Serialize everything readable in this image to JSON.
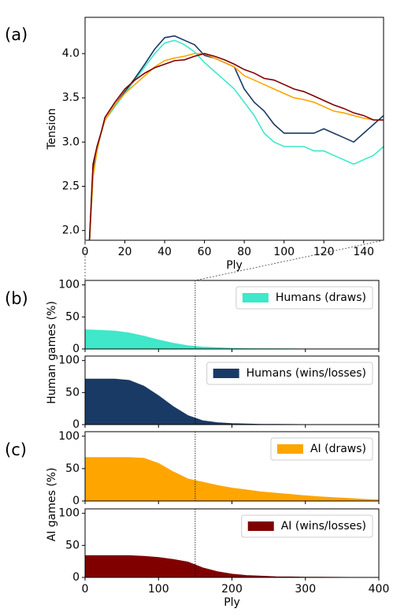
{
  "chart_data": [
    {
      "type": "line",
      "panel_label": "(a)",
      "xlabel": "Ply",
      "ylabel": "Tension",
      "xlim": [
        0,
        150
      ],
      "ylim": [
        1.89,
        4.41
      ],
      "xticks": [
        0,
        20,
        40,
        60,
        80,
        100,
        120,
        140
      ],
      "yticks": [
        {
          "value": 2,
          "label": "2.0"
        },
        2.5,
        {
          "value": 3,
          "label": "3.0"
        },
        3.5,
        {
          "value": 4,
          "label": "4.0"
        }
      ],
      "x": [
        2,
        4,
        6,
        8,
        10,
        15,
        20,
        25,
        30,
        35,
        40,
        45,
        50,
        55,
        60,
        65,
        70,
        75,
        80,
        85,
        90,
        95,
        100,
        105,
        110,
        115,
        120,
        125,
        130,
        135,
        140,
        145,
        150
      ],
      "series": [
        {
          "color": "#3ee8c8",
          "values": [
            1.8,
            2.6,
            2.9,
            3.1,
            3.25,
            3.4,
            3.55,
            3.7,
            3.85,
            4.0,
            4.12,
            4.15,
            4.1,
            4.02,
            3.9,
            3.8,
            3.7,
            3.6,
            3.45,
            3.3,
            3.1,
            3.0,
            2.95,
            2.95,
            2.95,
            2.9,
            2.9,
            2.85,
            2.8,
            2.75,
            2.8,
            2.85,
            2.95
          ]
        },
        {
          "color": "#1a3a66",
          "values": [
            1.8,
            2.7,
            2.95,
            3.1,
            3.25,
            3.42,
            3.57,
            3.72,
            3.88,
            4.05,
            4.18,
            4.2,
            4.15,
            4.1,
            3.98,
            3.95,
            3.9,
            3.85,
            3.6,
            3.45,
            3.35,
            3.2,
            3.1,
            3.1,
            3.1,
            3.1,
            3.15,
            3.1,
            3.05,
            3.0,
            3.1,
            3.2,
            3.3
          ]
        },
        {
          "color": "#ffa500",
          "values": [
            1.8,
            2.6,
            2.9,
            3.1,
            3.25,
            3.42,
            3.55,
            3.65,
            3.75,
            3.85,
            3.92,
            3.95,
            3.97,
            4.0,
            4.0,
            3.95,
            3.9,
            3.85,
            3.75,
            3.7,
            3.65,
            3.6,
            3.55,
            3.5,
            3.48,
            3.45,
            3.4,
            3.35,
            3.33,
            3.3,
            3.27,
            3.25,
            3.25
          ]
        },
        {
          "color": "#800000",
          "values": [
            1.8,
            2.75,
            2.95,
            3.1,
            3.28,
            3.45,
            3.6,
            3.7,
            3.78,
            3.84,
            3.88,
            3.92,
            3.93,
            3.97,
            4.0,
            3.97,
            3.93,
            3.88,
            3.82,
            3.78,
            3.72,
            3.7,
            3.65,
            3.6,
            3.57,
            3.52,
            3.47,
            3.42,
            3.38,
            3.33,
            3.3,
            3.25,
            3.25
          ]
        }
      ]
    },
    {
      "type": "area",
      "panel_label": "(b)",
      "ylabel": "Human games (%)",
      "legend": "upper right",
      "show_xtick_labels": false,
      "marker_x": 150,
      "xlim": [
        0,
        400
      ],
      "ylim": [
        0,
        107
      ],
      "xticks": [
        0,
        100,
        200,
        300,
        400
      ],
      "yticks": [
        0,
        50,
        100
      ],
      "x": [
        0,
        20,
        40,
        60,
        80,
        100,
        120,
        140,
        160,
        180,
        200,
        220,
        240,
        260,
        280,
        300,
        320,
        340,
        360,
        380,
        400
      ],
      "series": [
        {
          "name": "Humans (draws)",
          "color": "#3ee8c8",
          "values": [
            30,
            29,
            28,
            25,
            20,
            14,
            9,
            5,
            3,
            2,
            1,
            0.5,
            0.3,
            0.2,
            0.1,
            0,
            0,
            0,
            0,
            0,
            0
          ]
        }
      ]
    },
    {
      "type": "area",
      "legend": "upper right",
      "show_xtick_labels": false,
      "marker_x": 150,
      "xlim": [
        0,
        400
      ],
      "ylim": [
        0,
        107
      ],
      "xticks": [
        0,
        100,
        200,
        300,
        400
      ],
      "yticks": [
        0,
        50,
        100
      ],
      "x": [
        0,
        20,
        40,
        60,
        80,
        100,
        120,
        140,
        160,
        180,
        200,
        220,
        240,
        260,
        280,
        300,
        320,
        340,
        360,
        380,
        400
      ],
      "series": [
        {
          "name": "Humans (wins/losses)",
          "color": "#1a3a66",
          "values": [
            71,
            71,
            71,
            69,
            60,
            45,
            28,
            14,
            6,
            3,
            1.5,
            0.8,
            0.4,
            0.2,
            0.1,
            0,
            0,
            0,
            0,
            0,
            0
          ]
        }
      ]
    },
    {
      "type": "area",
      "panel_label": "(c)",
      "ylabel": "AI games (%)",
      "legend": "upper right",
      "show_xtick_labels": false,
      "marker_x": 150,
      "xlim": [
        0,
        400
      ],
      "ylim": [
        0,
        107
      ],
      "xticks": [
        0,
        100,
        200,
        300,
        400
      ],
      "yticks": [
        0,
        50,
        100
      ],
      "x": [
        0,
        20,
        40,
        60,
        80,
        100,
        120,
        140,
        160,
        180,
        200,
        220,
        240,
        260,
        280,
        300,
        320,
        340,
        360,
        380,
        400
      ],
      "series": [
        {
          "name": "AI (draws)",
          "color": "#ffa500",
          "values": [
            67,
            67,
            67,
            67,
            66,
            58,
            45,
            34,
            29,
            24,
            20,
            17,
            14,
            12,
            10,
            8,
            6.5,
            5,
            4,
            2.5,
            1.5
          ]
        }
      ]
    },
    {
      "type": "area",
      "xlabel": "Ply",
      "legend": "upper right",
      "show_xtick_labels": true,
      "marker_x": 150,
      "xlim": [
        0,
        400
      ],
      "ylim": [
        0,
        107
      ],
      "xticks": [
        0,
        100,
        200,
        300,
        400
      ],
      "yticks": [
        0,
        50,
        100
      ],
      "x": [
        0,
        20,
        40,
        60,
        80,
        100,
        120,
        140,
        160,
        180,
        200,
        220,
        240,
        260,
        280,
        300,
        320,
        340,
        360,
        380,
        400
      ],
      "series": [
        {
          "name": "AI (wins/losses)",
          "color": "#800000",
          "values": [
            34,
            34,
            34,
            34,
            33,
            31,
            28,
            24,
            15,
            9,
            5,
            3,
            2,
            1,
            0.7,
            0.4,
            0.2,
            0.1,
            0,
            0,
            0
          ]
        }
      ]
    }
  ]
}
